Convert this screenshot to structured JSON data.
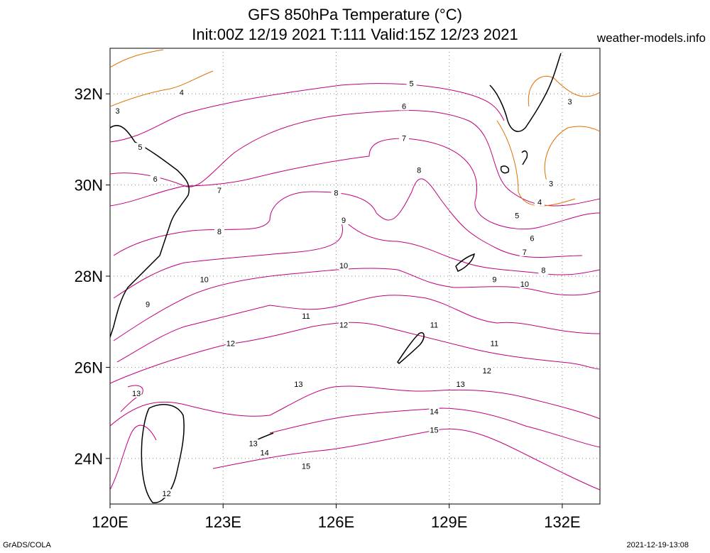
{
  "title_line1": "GFS 850hPa Temperature (°C)",
  "title_line2": "Init:00Z 12/19 2021 T:111 Valid:15Z 12/23 2021",
  "credit": "weather-models.info",
  "footer_left": "GrADS/COLA",
  "footer_right": "2021-12-19-13:08",
  "axes": {
    "x_ticks": [
      "120E",
      "123E",
      "126E",
      "129E",
      "132E"
    ],
    "y_ticks": [
      "32N",
      "30N",
      "28N",
      "26N",
      "24N"
    ],
    "lon_range": [
      120,
      133
    ],
    "lat_range": [
      23,
      33
    ]
  },
  "colors": {
    "cold_contour": "#e07000",
    "warm_contour": "#c0007a",
    "coast": "#000000",
    "grid": "#888888"
  },
  "contour_labels": [
    {
      "text": "4",
      "lon": 121.9,
      "lat": 32.0
    },
    {
      "text": "3",
      "lon": 120.2,
      "lat": 31.6
    },
    {
      "text": "5",
      "lon": 120.8,
      "lat": 30.8
    },
    {
      "text": "6",
      "lon": 121.2,
      "lat": 30.1
    },
    {
      "text": "7",
      "lon": 122.9,
      "lat": 29.85
    },
    {
      "text": "8",
      "lon": 122.9,
      "lat": 28.95
    },
    {
      "text": "9",
      "lon": 121.0,
      "lat": 27.35
    },
    {
      "text": "10",
      "lon": 122.5,
      "lat": 27.9
    },
    {
      "text": "12",
      "lon": 123.2,
      "lat": 26.5
    },
    {
      "text": "13",
      "lon": 120.7,
      "lat": 25.4
    },
    {
      "text": "12",
      "lon": 121.5,
      "lat": 23.2
    },
    {
      "text": "5",
      "lon": 128.0,
      "lat": 32.2
    },
    {
      "text": "6",
      "lon": 127.8,
      "lat": 31.7
    },
    {
      "text": "7",
      "lon": 127.8,
      "lat": 31.0
    },
    {
      "text": "8",
      "lon": 126.0,
      "lat": 29.8
    },
    {
      "text": "8",
      "lon": 128.2,
      "lat": 30.3
    },
    {
      "text": "9",
      "lon": 126.2,
      "lat": 29.2
    },
    {
      "text": "10",
      "lon": 126.2,
      "lat": 28.2
    },
    {
      "text": "11",
      "lon": 125.2,
      "lat": 27.1
    },
    {
      "text": "12",
      "lon": 126.2,
      "lat": 26.9
    },
    {
      "text": "11",
      "lon": 128.6,
      "lat": 26.9
    },
    {
      "text": "11",
      "lon": 130.2,
      "lat": 26.5
    },
    {
      "text": "12",
      "lon": 130.0,
      "lat": 25.9
    },
    {
      "text": "13",
      "lon": 125.0,
      "lat": 25.6
    },
    {
      "text": "13",
      "lon": 129.3,
      "lat": 25.6
    },
    {
      "text": "14",
      "lon": 128.6,
      "lat": 25.0
    },
    {
      "text": "15",
      "lon": 128.6,
      "lat": 24.6
    },
    {
      "text": "13",
      "lon": 123.8,
      "lat": 24.3
    },
    {
      "text": "14",
      "lon": 124.1,
      "lat": 24.1
    },
    {
      "text": "15",
      "lon": 125.2,
      "lat": 23.8
    },
    {
      "text": "3",
      "lon": 132.2,
      "lat": 31.8
    },
    {
      "text": "3",
      "lon": 131.7,
      "lat": 30.0
    },
    {
      "text": "4",
      "lon": 131.4,
      "lat": 29.6
    },
    {
      "text": "5",
      "lon": 130.8,
      "lat": 29.3
    },
    {
      "text": "6",
      "lon": 131.2,
      "lat": 28.8
    },
    {
      "text": "7",
      "lon": 131.0,
      "lat": 28.5
    },
    {
      "text": "8",
      "lon": 131.5,
      "lat": 28.1
    },
    {
      "text": "9",
      "lon": 130.2,
      "lat": 27.9
    },
    {
      "text": "10",
      "lon": 131.0,
      "lat": 27.8
    }
  ]
}
